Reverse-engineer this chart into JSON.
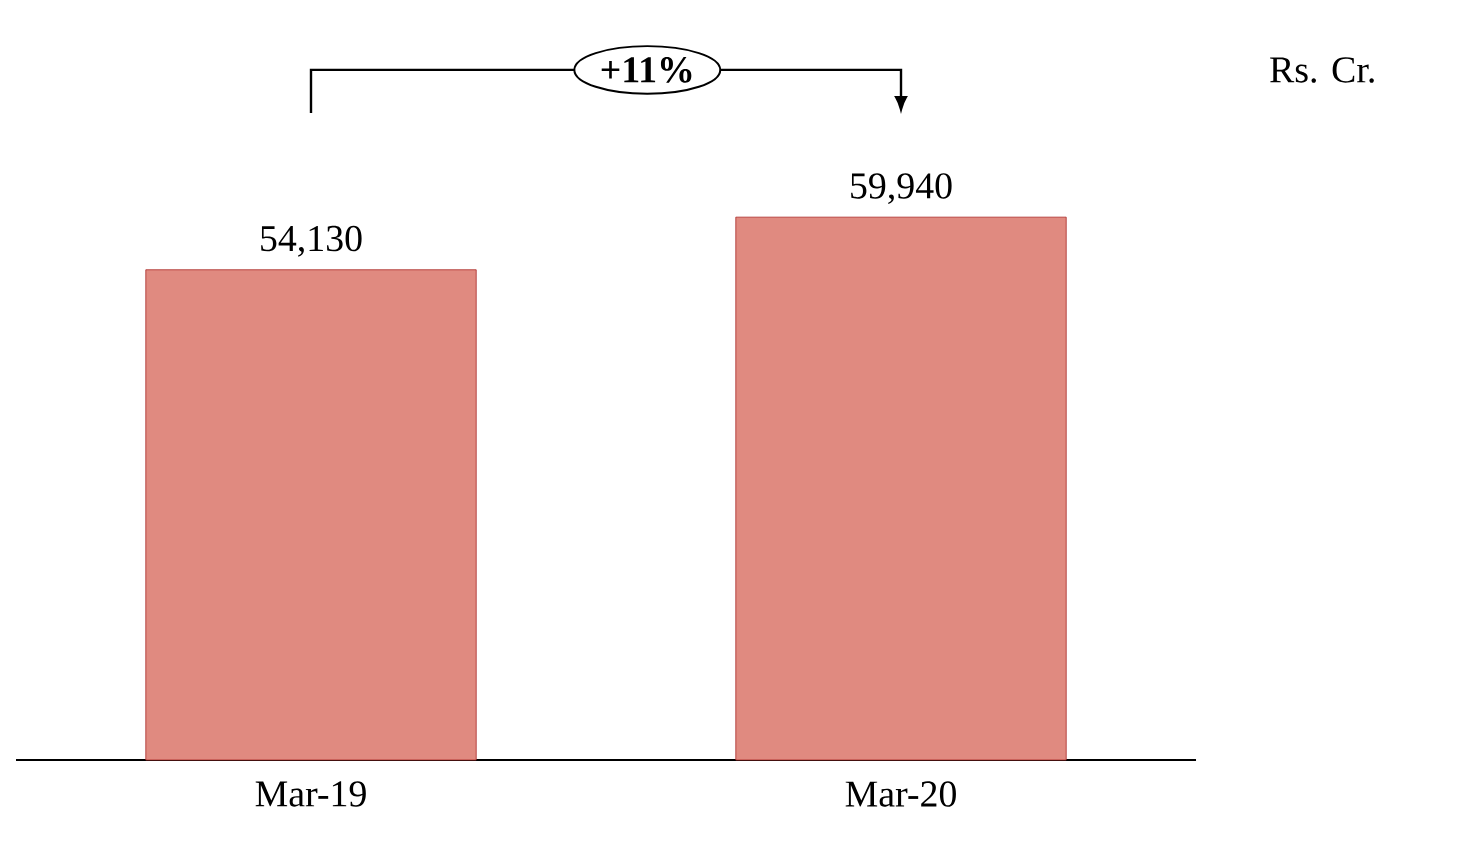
{
  "chart_data": {
    "type": "bar",
    "categories": [
      "Mar-19",
      "Mar-20"
    ],
    "values": [
      54130,
      59940
    ],
    "value_labels": [
      "54,130",
      "59,940"
    ],
    "color": "#e08a80",
    "annotations": [
      "+11%",
      "Rs. Cr."
    ]
  }
}
